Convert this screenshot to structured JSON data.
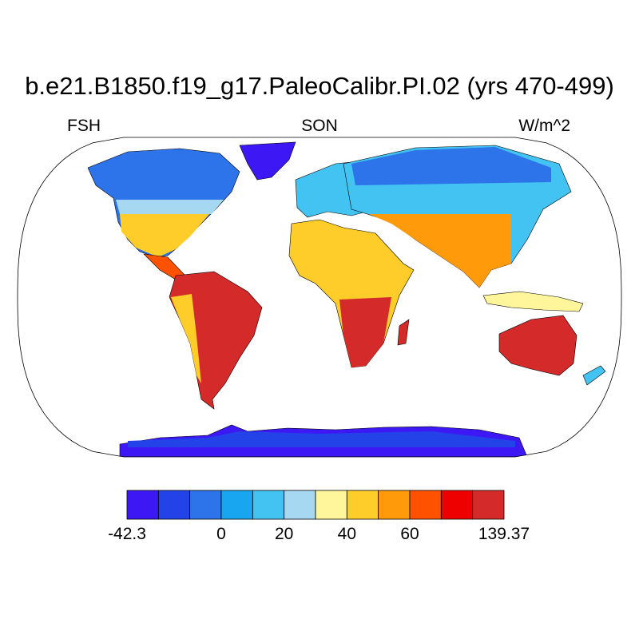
{
  "header": {
    "title": "b.e21.B1850.f19_g17.PaleoCalibr.PI.02 (yrs 470-499)",
    "left_label": "FSH",
    "center_label": "SON",
    "right_label": "W/m^2"
  },
  "map": {
    "projection": "robinson",
    "variable": "FSH",
    "season": "SON",
    "units": "W/m^2"
  },
  "colorbar": {
    "colors": [
      "#3d18f5",
      "#2343e8",
      "#2d73ea",
      "#18a6f0",
      "#43c3f2",
      "#a6d8f2",
      "#fff59a",
      "#ffcd2a",
      "#ff9a0a",
      "#ff5200",
      "#ee0000",
      "#d42a2a"
    ],
    "tick_labels": [
      "-42.3",
      "0",
      "20",
      "40",
      "60",
      "139.37"
    ]
  }
}
